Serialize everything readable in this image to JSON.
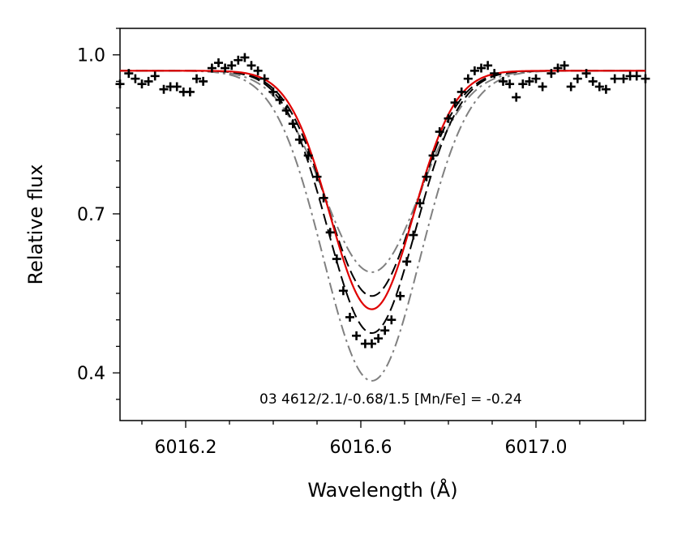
{
  "chart_data": {
    "type": "line",
    "xlabel": "Wavelength (Å)",
    "ylabel": "Relative flux",
    "xlim": [
      6016.05,
      6017.25
    ],
    "ylim": [
      0.31,
      1.05
    ],
    "xticks": [
      6016.2,
      6016.6,
      6017.0
    ],
    "xtick_labels": [
      "6016.2",
      "6016.6",
      "6017.0"
    ],
    "yticks": [
      0.4,
      0.7,
      1.0
    ],
    "ytick_labels": [
      "0.4",
      "0.7",
      "1.0"
    ],
    "annotation": "03  4612/2.1/-0.68/1.5  [Mn/Fe] = -0.24",
    "colors": {
      "best_fit": "#e00000",
      "dashed": "#000000",
      "dashdot": "#808080",
      "observed": "#000000"
    },
    "continuum": 0.97,
    "line_center": 6016.625,
    "observed": {
      "x": [
        6016.05,
        6016.07,
        6016.085,
        6016.1,
        6016.115,
        6016.13,
        6016.15,
        6016.165,
        6016.18,
        6016.195,
        6016.21,
        6016.225,
        6016.24,
        6016.26,
        6016.275,
        6016.29,
        6016.305,
        6016.32,
        6016.335,
        6016.35,
        6016.365,
        6016.38,
        6016.4,
        6016.415,
        6016.43,
        6016.445,
        6016.46,
        6016.48,
        6016.5,
        6016.515,
        6016.53,
        6016.545,
        6016.56,
        6016.575,
        6016.59,
        6016.61,
        6016.625,
        6016.64,
        6016.655,
        6016.67,
        6016.69,
        6016.705,
        6016.72,
        6016.735,
        6016.75,
        6016.765,
        6016.78,
        6016.8,
        6016.815,
        6016.83,
        6016.845,
        6016.86,
        6016.875,
        6016.89,
        6016.905,
        6016.925,
        6016.94,
        6016.955,
        6016.97,
        6016.985,
        6017.0,
        6017.015,
        6017.035,
        6017.05,
        6017.065,
        6017.08,
        6017.095,
        6017.115,
        6017.13,
        6017.145,
        6017.16,
        6017.18,
        6017.2,
        6017.215,
        6017.23,
        6017.25
      ],
      "y": [
        0.945,
        0.965,
        0.955,
        0.945,
        0.95,
        0.96,
        0.935,
        0.94,
        0.94,
        0.93,
        0.93,
        0.955,
        0.95,
        0.975,
        0.985,
        0.975,
        0.98,
        0.99,
        0.995,
        0.98,
        0.97,
        0.955,
        0.93,
        0.915,
        0.895,
        0.87,
        0.84,
        0.81,
        0.77,
        0.73,
        0.665,
        0.615,
        0.555,
        0.505,
        0.47,
        0.455,
        0.455,
        0.465,
        0.48,
        0.5,
        0.545,
        0.61,
        0.66,
        0.72,
        0.77,
        0.81,
        0.855,
        0.88,
        0.91,
        0.93,
        0.955,
        0.97,
        0.975,
        0.98,
        0.965,
        0.95,
        0.945,
        0.92,
        0.945,
        0.95,
        0.955,
        0.94,
        0.965,
        0.975,
        0.98,
        0.94,
        0.955,
        0.965,
        0.95,
        0.94,
        0.935,
        0.955,
        0.955,
        0.96,
        0.96,
        0.955
      ]
    },
    "series": [
      {
        "style": "dashdot",
        "color": "#808080",
        "depth": 0.385,
        "sigma": 0.11
      },
      {
        "style": "dashed",
        "color": "#000000",
        "depth": 0.475,
        "sigma": 0.1
      },
      {
        "style": "solid",
        "color": "#e00000",
        "depth": 0.52,
        "sigma": 0.095
      },
      {
        "style": "dashed",
        "color": "#000000",
        "depth": 0.545,
        "sigma": 0.1
      },
      {
        "style": "dashdot",
        "color": "#808080",
        "depth": 0.59,
        "sigma": 0.11
      }
    ]
  }
}
